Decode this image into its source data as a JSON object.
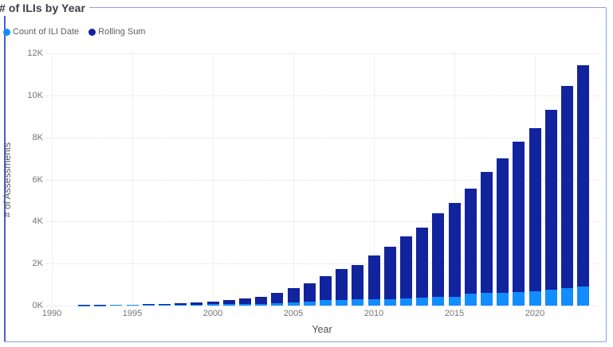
{
  "title": "# of ILIs by Year",
  "legend": {
    "items": [
      {
        "label": "Count of ILI Date",
        "color": "#118DFF"
      },
      {
        "label": "Rolling Sum",
        "color": "#12239E"
      }
    ]
  },
  "x_axis": {
    "title": "Year",
    "ticks": [
      1990,
      1995,
      2000,
      2005,
      2010,
      2015,
      2020
    ]
  },
  "y_axis": {
    "title": "# of Assessments",
    "tick_labels": [
      "0K",
      "2K",
      "4K",
      "6K",
      "8K",
      "10K",
      "12K"
    ],
    "tick_values": [
      0,
      2000,
      4000,
      6000,
      8000,
      10000,
      12000
    ]
  },
  "chart_data": {
    "type": "bar",
    "stacked": true,
    "title": "# of ILIs by Year",
    "xlabel": "Year",
    "ylabel": "# of Assessments",
    "ylim": [
      0,
      12000
    ],
    "x_range": [
      1990,
      2023
    ],
    "grid": true,
    "legend_position": "top-left",
    "categories": [
      1992,
      1993,
      1994,
      1995,
      1996,
      1997,
      1998,
      1999,
      2000,
      2001,
      2002,
      2003,
      2004,
      2005,
      2006,
      2007,
      2008,
      2009,
      2010,
      2011,
      2012,
      2013,
      2014,
      2015,
      2016,
      2017,
      2018,
      2019,
      2020,
      2021,
      2022,
      2023
    ],
    "series": [
      {
        "name": "Count of ILI Date",
        "color": "#118DFF",
        "values": [
          10,
          15,
          20,
          20,
          25,
          25,
          30,
          40,
          60,
          70,
          80,
          90,
          120,
          150,
          200,
          250,
          280,
          300,
          300,
          320,
          350,
          380,
          400,
          420,
          550,
          600,
          600,
          650,
          700,
          750,
          850,
          900
        ]
      },
      {
        "name": "Rolling Sum",
        "color": "#12239E",
        "values": [
          10,
          15,
          20,
          30,
          35,
          55,
          70,
          100,
          130,
          200,
          260,
          330,
          490,
          690,
          860,
          1150,
          1470,
          1650,
          2100,
          2480,
          2950,
          3320,
          4000,
          4480,
          5000,
          5750,
          6400,
          7150,
          7750,
          8550,
          9600,
          10550
        ]
      }
    ]
  }
}
